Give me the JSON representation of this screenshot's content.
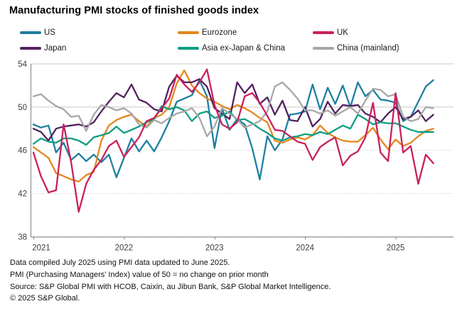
{
  "title": "Manufacturing PMI stocks of finished goods index",
  "legend": [
    {
      "label": "US",
      "color": "#1e7f9f"
    },
    {
      "label": "Eurozone",
      "color": "#e5861c"
    },
    {
      "label": "UK",
      "color": "#c9205f"
    },
    {
      "label": "Japan",
      "color": "#54215f"
    },
    {
      "label": "Asia ex-Japan & China",
      "color": "#0a9e82"
    },
    {
      "label": "China (mainland)",
      "color": "#a7a7a7"
    }
  ],
  "footer": {
    "lines": [
      "Data compiled July 2025 using PMI data updated to June 2025.",
      "PMI (Purchasing Managers' Index) value of 50 = no change on prior month",
      "Source: S&P Global PMI with HCOB, Caixin, au Jibun Bank, S&P Global Market Intelligence.",
      "© 2025 S&P Global."
    ]
  },
  "chart_data": {
    "type": "line",
    "title": "Manufacturing PMI stocks of finished goods index",
    "xlabel": "",
    "ylabel": "",
    "x_unit": "month",
    "x_start": "2021-01",
    "x_end": "2025-06",
    "points_per_series": 54,
    "ylim": [
      38,
      54
    ],
    "yticks": [
      38,
      42,
      46,
      50,
      54
    ],
    "solid_gridlines": [
      50,
      54
    ],
    "dotted_gridlines": [
      38,
      42,
      46
    ],
    "reference_line": 50,
    "year_labels": [
      "2021",
      "2022",
      "2023",
      "2024",
      "2025"
    ],
    "legend_position": "top",
    "grid": true,
    "series": [
      {
        "name": "US",
        "color": "#1e7f9f",
        "values": [
          48.4,
          48.1,
          48.3,
          45.8,
          46.7,
          45.1,
          45.7,
          45.0,
          45.6,
          44.9,
          45.6,
          43.5,
          45.3,
          47.1,
          45.9,
          46.9,
          45.9,
          47.2,
          48.7,
          50.5,
          50.8,
          51.1,
          52.5,
          51.0,
          46.2,
          49.9,
          47.9,
          48.9,
          48.4,
          46.2,
          43.3,
          47.3,
          46.0,
          47.0,
          49.3,
          49.4,
          49.6,
          52.1,
          49.8,
          51.8,
          50.3,
          52.0,
          50.0,
          52.3,
          51.0,
          51.6,
          50.7,
          50.6,
          50.4,
          48.7,
          49.1,
          50.5,
          51.9,
          52.5
        ]
      },
      {
        "name": "Eurozone",
        "color": "#e5861c",
        "values": [
          46.3,
          45.8,
          45.3,
          43.9,
          43.6,
          43.3,
          43.1,
          43.7,
          44.0,
          46.9,
          48.3,
          48.8,
          49.1,
          49.3,
          48.7,
          48.2,
          49.0,
          49.3,
          50.0,
          52.2,
          53.4,
          52.0,
          51.3,
          50.8,
          50.5,
          50.1,
          49.8,
          50.2,
          49.9,
          49.5,
          49.0,
          48.6,
          46.9,
          46.7,
          47.0,
          47.2,
          47.0,
          47.4,
          48.3,
          47.6,
          47.2,
          46.9,
          46.8,
          46.8,
          47.4,
          48.1,
          47.0,
          46.1,
          47.0,
          46.4,
          46.7,
          47.3,
          47.8,
          48.0
        ]
      },
      {
        "name": "Japan",
        "color": "#54215f",
        "values": [
          48.0,
          47.7,
          46.9,
          48.0,
          48.2,
          48.3,
          48.4,
          48.2,
          48.6,
          49.6,
          50.5,
          51.3,
          50.9,
          52.1,
          50.7,
          50.4,
          49.8,
          49.6,
          51.9,
          52.9,
          52.3,
          52.3,
          52.6,
          51.9,
          49.9,
          49.4,
          48.9,
          52.3,
          51.3,
          52.1,
          50.3,
          50.9,
          49.3,
          50.6,
          48.8,
          48.7,
          50.0,
          48.2,
          48.9,
          50.5,
          49.4,
          50.2,
          50.1,
          50.2,
          49.4,
          49.1,
          48.6,
          49.4,
          50.0,
          48.9,
          49.1,
          49.7,
          48.7,
          49.3
        ]
      },
      {
        "name": "Asia ex-Japan & China",
        "color": "#0a9e82",
        "values": [
          46.6,
          47.1,
          46.8,
          46.7,
          47.1,
          47.1,
          46.9,
          46.5,
          47.2,
          47.4,
          47.6,
          48.2,
          47.6,
          47.9,
          48.2,
          48.6,
          48.9,
          50.1,
          49.8,
          50.0,
          49.7,
          48.7,
          49.4,
          49.6,
          49.0,
          49.2,
          49.6,
          48.8,
          48.9,
          48.5,
          48.0,
          47.6,
          47.1,
          46.9,
          47.2,
          47.3,
          47.5,
          47.4,
          47.7,
          47.5,
          47.9,
          48.3,
          48.0,
          49.3,
          48.9,
          48.4,
          48.6,
          48.5,
          48.5,
          48.2,
          47.9,
          47.7,
          47.7,
          47.7
        ]
      },
      {
        "name": "China (mainland)",
        "color": "#a7a7a7",
        "values": [
          51.0,
          51.2,
          50.6,
          50.1,
          49.8,
          49.1,
          49.2,
          47.8,
          49.3,
          50.2,
          50.0,
          49.7,
          49.9,
          49.4,
          48.4,
          48.1,
          48.8,
          48.5,
          49.0,
          49.4,
          49.6,
          49.9,
          49.0,
          47.3,
          48.2,
          49.9,
          49.4,
          48.9,
          48.1,
          48.4,
          48.7,
          49.6,
          51.9,
          52.3,
          51.6,
          50.8,
          49.7,
          49.7,
          49.4,
          49.7,
          49.2,
          49.6,
          50.0,
          49.4,
          50.6,
          51.7,
          51.6,
          51.0,
          51.2,
          49.1,
          48.7,
          48.9,
          50.0,
          49.9
        ]
      },
      {
        "name": "UK",
        "color": "#c9205f",
        "values": [
          45.8,
          43.6,
          42.1,
          42.3,
          48.4,
          44.9,
          40.3,
          42.9,
          44.2,
          45.1,
          46.4,
          46.9,
          45.4,
          46.3,
          47.2,
          48.7,
          49.0,
          49.9,
          50.8,
          53.0,
          52.1,
          51.4,
          52.3,
          53.5,
          50.2,
          48.4,
          48.0,
          48.6,
          51.0,
          51.3,
          50.4,
          49.2,
          47.9,
          47.8,
          47.3,
          46.8,
          46.6,
          45.1,
          46.3,
          46.8,
          47.2,
          44.6,
          45.5,
          45.9,
          47.2,
          50.4,
          45.8,
          45.0,
          51.3,
          45.8,
          46.4,
          42.9,
          45.6,
          44.8
        ]
      }
    ]
  }
}
